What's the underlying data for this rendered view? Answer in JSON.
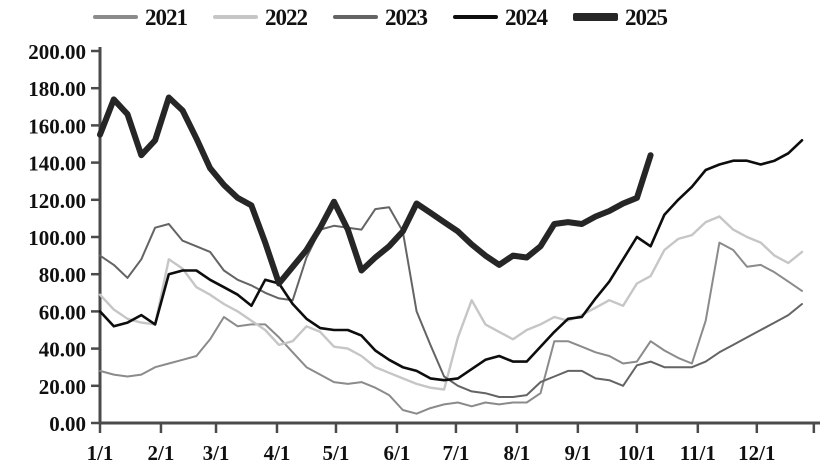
{
  "chart_data": {
    "type": "line",
    "title": "",
    "xlabel": "",
    "ylabel": "",
    "ylim": [
      0,
      200
    ],
    "y_tick_step": 20,
    "y_tick_labels": [
      "0.00",
      "20.00",
      "40.00",
      "60.00",
      "80.00",
      "100.00",
      "120.00",
      "140.00",
      "160.00",
      "180.00",
      "200.00"
    ],
    "x_tick_labels": [
      "1/1",
      "2/1",
      "3/1",
      "4/1",
      "5/1",
      "6/1",
      "7/1",
      "8/1",
      "9/1",
      "10/1",
      "11/1",
      "12/1"
    ],
    "month_start_days": [
      1,
      32,
      60,
      91,
      121,
      152,
      182,
      213,
      244,
      274,
      305,
      335
    ],
    "extra_end_tick_day": 364,
    "grid": false,
    "legend_position": "top",
    "axis_color": "#4a4a4a",
    "background": "#ffffff",
    "x_unit": "weekly points, month/day of year",
    "series": [
      {
        "name": "2021",
        "color": "#8b8b8b",
        "width": 2,
        "values": [
          28,
          26,
          25,
          26,
          30,
          32,
          34,
          36,
          45,
          57,
          52,
          53,
          53,
          46,
          38,
          30,
          26,
          22,
          21,
          22,
          19,
          15,
          7,
          5,
          8,
          10,
          11,
          9,
          11,
          10,
          11,
          11,
          16,
          44,
          44,
          41,
          38,
          36,
          32,
          33,
          44,
          39,
          35,
          32,
          55,
          97,
          93,
          84,
          85,
          81,
          76,
          71
        ]
      },
      {
        "name": "2022",
        "color": "#c6c6c6",
        "width": 2.4,
        "values": [
          69,
          61,
          56,
          54,
          53,
          88,
          83,
          73,
          69,
          64,
          60,
          55,
          50,
          42,
          44,
          52,
          49,
          41,
          40,
          36,
          30,
          27,
          24,
          21,
          19,
          18,
          46,
          66,
          53,
          49,
          45,
          50,
          53,
          57,
          55,
          58,
          62,
          66,
          63,
          75,
          79,
          93,
          99,
          101,
          108,
          111,
          104,
          100,
          97,
          90,
          86,
          92
        ]
      },
      {
        "name": "2023",
        "color": "#646464",
        "width": 2,
        "values": [
          90,
          85,
          78,
          88,
          105,
          107,
          98,
          95,
          92,
          82,
          77,
          74,
          70,
          67,
          66,
          89,
          104,
          106,
          105,
          104,
          115,
          116,
          103,
          60,
          42,
          25,
          20,
          17,
          16,
          14,
          14,
          15,
          22,
          25,
          28,
          28,
          24,
          23,
          20,
          31,
          33,
          30,
          30,
          30,
          33,
          38,
          42,
          46,
          50,
          54,
          58,
          64
        ]
      },
      {
        "name": "2024",
        "color": "#0d0d0d",
        "width": 2.6,
        "values": [
          60,
          52,
          54,
          58,
          53,
          80,
          82,
          82,
          77,
          73,
          69,
          63,
          77,
          75,
          64,
          56,
          51,
          50,
          50,
          47,
          39,
          34,
          30,
          28,
          24,
          23,
          24,
          29,
          34,
          36,
          33,
          33,
          41,
          49,
          56,
          57,
          67,
          76,
          88,
          100,
          95,
          112,
          120,
          127,
          136,
          139,
          141,
          141,
          139,
          141,
          145,
          152
        ]
      },
      {
        "name": "2025",
        "color": "#262626",
        "width": 6,
        "values": [
          155,
          174,
          166,
          144,
          152,
          175,
          168,
          153,
          137,
          128,
          121,
          117,
          97,
          75,
          84,
          93,
          105,
          119,
          104,
          82,
          89,
          95,
          103,
          118,
          113,
          108,
          103,
          96,
          90,
          85,
          90,
          89,
          95,
          107,
          108,
          107,
          111,
          114,
          118,
          121,
          144
        ]
      }
    ]
  }
}
